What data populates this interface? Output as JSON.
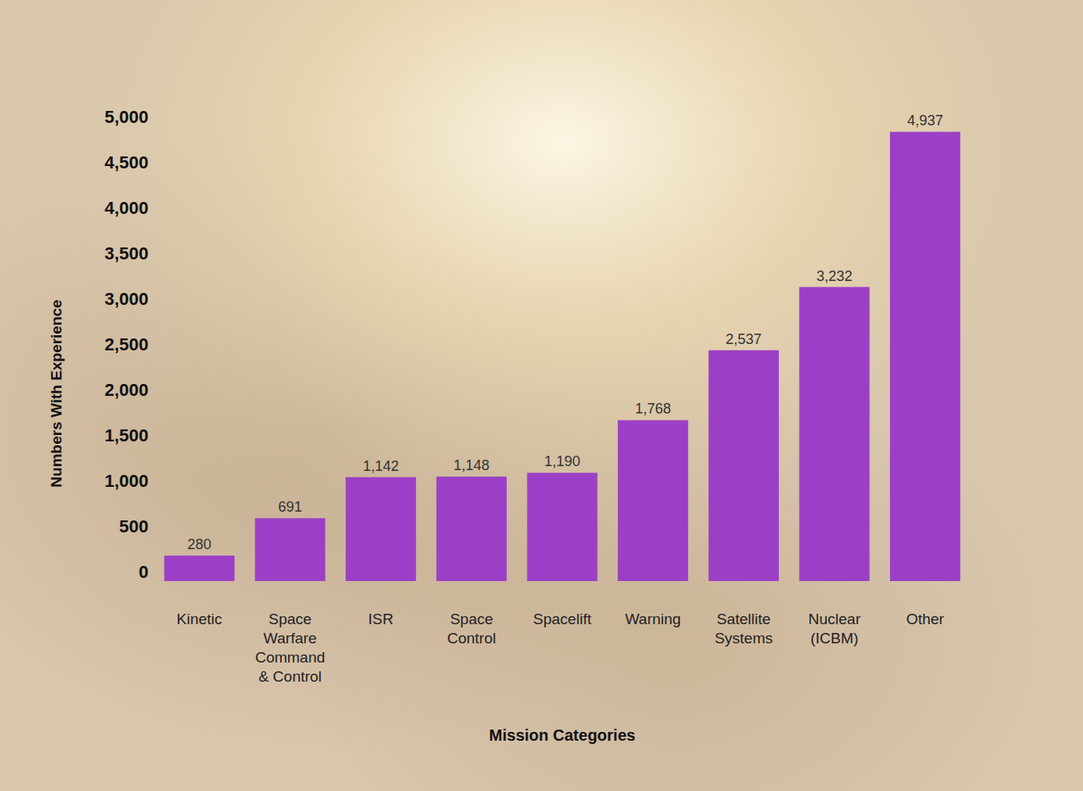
{
  "chart_data": {
    "type": "bar",
    "categories": [
      "Kinetic",
      "Space Warfare Command & Control",
      "ISR",
      "Space Control",
      "Spacelift",
      "Warning",
      "Satellite Systems",
      "Nuclear (ICBM)",
      "Other"
    ],
    "values": [
      280,
      691,
      1142,
      1148,
      1190,
      1768,
      2537,
      3232,
      4937
    ],
    "value_labels": [
      "280",
      "691",
      "1,142",
      "1,148",
      "1,190",
      "1,768",
      "2,537",
      "3,232",
      "4,937"
    ],
    "color": "#9b40c6",
    "x_label": "Mission Categories",
    "y_label": "Numbers With Experience",
    "ylim": [
      0,
      5000
    ],
    "yticks": [
      0,
      500,
      {
        "value": 1000,
        "label": "1,000"
      },
      {
        "value": 1500,
        "label": "1,500"
      },
      {
        "value": 2000,
        "label": "2,000"
      },
      {
        "value": 2500,
        "label": "2,500"
      },
      {
        "value": 3000,
        "label": "3,000"
      },
      {
        "value": 3500,
        "label": "3,500"
      },
      {
        "value": 4000,
        "label": "4,000"
      },
      {
        "value": 4500,
        "label": "4,500"
      },
      {
        "value": 5000,
        "label": "5,000"
      }
    ],
    "grid": false,
    "data_labels": true
  }
}
